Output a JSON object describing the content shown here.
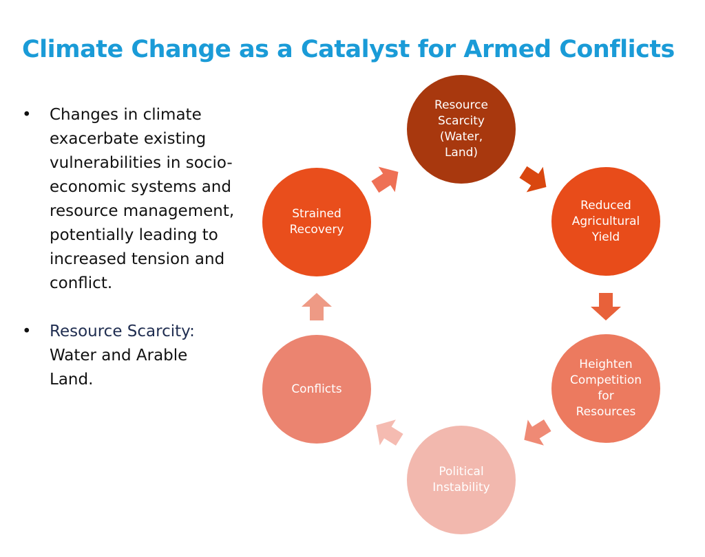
{
  "title": "Climate Change as a Catalyst for Armed Conflicts",
  "bullets": [
    {
      "text": "Changes in climate exacerbate existing vulnerabilities in socio-economic systems and resource management, potentially leading to increased tension and conflict."
    },
    {
      "label": "Resource Scarcity:",
      "text": "Water and Arable Land."
    }
  ],
  "nodes": [
    {
      "label": "Resource Scarcity (Water, Land)"
    },
    {
      "label": "Reduced Agricultural Yield"
    },
    {
      "label": "Heighten Competition for Resources"
    },
    {
      "label": "Political Instability"
    },
    {
      "label": "Conflicts"
    },
    {
      "label": "Strained Recovery"
    }
  ]
}
